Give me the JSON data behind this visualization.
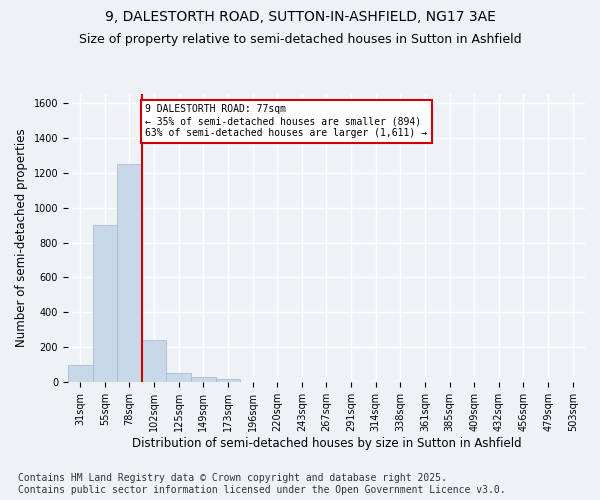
{
  "title_line1": "9, DALESTORTH ROAD, SUTTON-IN-ASHFIELD, NG17 3AE",
  "title_line2": "Size of property relative to semi-detached houses in Sutton in Ashfield",
  "xlabel": "Distribution of semi-detached houses by size in Sutton in Ashfield",
  "ylabel": "Number of semi-detached properties",
  "categories": [
    "31sqm",
    "55sqm",
    "78sqm",
    "102sqm",
    "125sqm",
    "149sqm",
    "173sqm",
    "196sqm",
    "220sqm",
    "243sqm",
    "267sqm",
    "291sqm",
    "314sqm",
    "338sqm",
    "361sqm",
    "385sqm",
    "409sqm",
    "432sqm",
    "456sqm",
    "479sqm",
    "503sqm"
  ],
  "values": [
    100,
    900,
    1250,
    240,
    55,
    28,
    20,
    0,
    0,
    0,
    0,
    0,
    0,
    0,
    0,
    0,
    0,
    0,
    0,
    0,
    0
  ],
  "bar_color": "#c8d8e8",
  "bar_edge_color": "#a0b8cc",
  "vline_x_index": 2,
  "annotation_text": "9 DALESTORTH ROAD: 77sqm\n← 35% of semi-detached houses are smaller (894)\n63% of semi-detached houses are larger (1,611) →",
  "annotation_box_color": "#ffffff",
  "annotation_box_edge": "#cc0000",
  "vline_color": "#cc0000",
  "background_color": "#eef2f7",
  "grid_color": "#ffffff",
  "ylim": [
    0,
    1650
  ],
  "yticks": [
    0,
    200,
    400,
    600,
    800,
    1000,
    1200,
    1400,
    1600
  ],
  "footer": "Contains HM Land Registry data © Crown copyright and database right 2025.\nContains public sector information licensed under the Open Government Licence v3.0.",
  "footer_fontsize": 7,
  "title_fontsize1": 10,
  "title_fontsize2": 9,
  "xlabel_fontsize": 8.5,
  "ylabel_fontsize": 8.5,
  "tick_fontsize": 7
}
